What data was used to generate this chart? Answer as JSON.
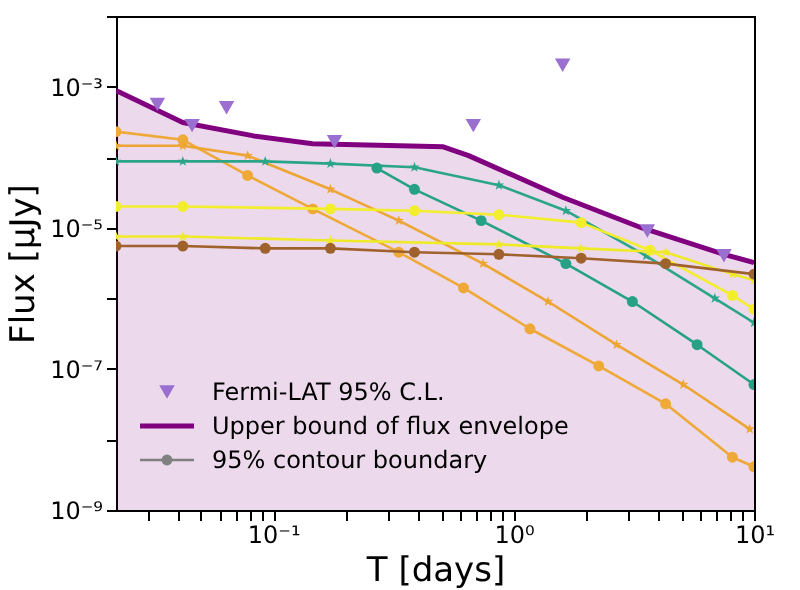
{
  "chart_data": {
    "type": "line",
    "xlabel": "T [days]",
    "ylabel": "Flux [μJy]",
    "log": "xy",
    "legend": "bottom left",
    "grid": false,
    "xlim": [
      0.0222,
      10
    ],
    "ylim": [
      1e-09,
      0.01
    ],
    "xticks": [
      {
        "value": 0.03,
        "label": null
      },
      {
        "value": 0.04,
        "label": null
      },
      {
        "value": 0.05,
        "label": null
      },
      {
        "value": 0.06,
        "label": null
      },
      {
        "value": 0.07,
        "label": null
      },
      {
        "value": 0.08,
        "label": null
      },
      {
        "value": 0.09,
        "label": null
      },
      {
        "value": 0.1,
        "label": "10⁻¹"
      },
      {
        "value": 0.2,
        "label": null
      },
      {
        "value": 0.3,
        "label": null
      },
      {
        "value": 0.4,
        "label": null
      },
      {
        "value": 0.5,
        "label": null
      },
      {
        "value": 0.6,
        "label": null
      },
      {
        "value": 0.7,
        "label": null
      },
      {
        "value": 0.8,
        "label": null
      },
      {
        "value": 0.9,
        "label": null
      },
      {
        "value": 1,
        "label": "10⁰"
      },
      {
        "value": 2,
        "label": null
      },
      {
        "value": 3,
        "label": null
      },
      {
        "value": 4,
        "label": null
      },
      {
        "value": 5,
        "label": null
      },
      {
        "value": 6,
        "label": null
      },
      {
        "value": 7,
        "label": null
      },
      {
        "value": 8,
        "label": null
      },
      {
        "value": 9,
        "label": null
      },
      {
        "value": 10,
        "label": "10¹"
      }
    ],
    "yticks": [
      {
        "value": 1e-09,
        "label": "10⁻⁹"
      },
      {
        "value": 1e-08,
        "label": null
      },
      {
        "value": 1e-07,
        "label": "10⁻⁷"
      },
      {
        "value": 1e-06,
        "label": null
      },
      {
        "value": 1e-05,
        "label": "10⁻⁵"
      },
      {
        "value": 0.0001,
        "label": null
      },
      {
        "value": 0.001,
        "label": "10⁻³"
      },
      {
        "value": 0.01,
        "label": null
      }
    ],
    "series": [
      {
        "type": "scatter",
        "name": "Fermi-LAT 95% C.L.",
        "color": "#9b6fd0",
        "marker": "triangle",
        "x": [
          0.033,
          0.046,
          0.064,
          0.18,
          0.68,
          1.6,
          3.6,
          7.5
        ],
        "values": [
          0.00056,
          0.00028,
          0.0005,
          0.000165,
          0.00028,
          0.002,
          9e-06,
          4e-06
        ]
      },
      {
        "type": "area",
        "name": "Upper bound of flux envelope",
        "color": "#800080",
        "marker": "none",
        "x": [
          0.0222,
          0.0421,
          0.083,
          0.146,
          0.51,
          0.65,
          1.6,
          3.4,
          7.5,
          10
        ],
        "values": [
          0.00088,
          0.00031,
          0.0002,
          0.000155,
          0.00014,
          0.000105,
          2.7e-05,
          1e-05,
          4.2e-06,
          3.2e-06
        ]
      },
      {
        "name": "95% contour boundary",
        "color": "#808080",
        "marker": "circle"
      },
      {
        "color": "#efa938",
        "marker": "circle",
        "x": [
          0.0222,
          0.0421,
          0.0783,
          0.146,
          0.333,
          0.619,
          1.17,
          2.26,
          4.29,
          8.13,
          10
        ],
        "values": [
          0.00023,
          0.000176,
          5.5e-05,
          1.85e-05,
          4.5e-06,
          1.4e-06,
          3.7e-07,
          1.1e-07,
          3.2e-08,
          5.6e-09,
          4.1e-09
        ]
      },
      {
        "color": "#eda534",
        "marker": "star",
        "x": [
          0.0222,
          0.0421,
          0.0783,
          0.173,
          0.333,
          0.746,
          1.39,
          2.68,
          5.08,
          9.6
        ],
        "values": [
          0.000145,
          0.000145,
          0.000105,
          3.5e-05,
          1.26e-05,
          3.1e-06,
          9e-07,
          2.2e-07,
          6e-08,
          1.4e-08
        ]
      },
      {
        "color": "#2ba58a",
        "marker": "star",
        "x": [
          0.0222,
          0.0421,
          0.0927,
          0.173,
          0.387,
          0.869,
          1.65,
          3.56,
          6.87,
          10
        ],
        "values": [
          8.7e-05,
          8.7e-05,
          8.7e-05,
          8.1e-05,
          7.2e-05,
          4e-05,
          1.74e-05,
          4e-06,
          1e-06,
          4.5e-07
        ]
      },
      {
        "color": "#27a186",
        "marker": "circle",
        "x": [
          0.27,
          0.387,
          0.733,
          1.65,
          3.12,
          5.8,
          10
        ],
        "values": [
          7e-05,
          3.5e-05,
          1.26e-05,
          3.1e-06,
          9e-07,
          2.2e-07,
          6e-08
        ]
      },
      {
        "color": "#f3ee2c",
        "marker": "circle",
        "x": [
          0.0222,
          0.0421,
          0.173,
          0.387,
          0.869,
          1.91,
          3.69,
          8.13,
          10
        ],
        "values": [
          2e-05,
          2e-05,
          1.85e-05,
          1.74e-05,
          1.53e-05,
          1.18e-05,
          4.8e-06,
          1.1e-06,
          7e-07
        ]
      },
      {
        "color": "#efea28",
        "marker": "star",
        "x": [
          0.0222,
          0.0421,
          0.173,
          0.869,
          1.91,
          4.29,
          8.13,
          10
        ],
        "values": [
          7.5e-06,
          7.5e-06,
          6.6e-06,
          5.8e-06,
          5.1e-06,
          4.5e-06,
          2.2e-06,
          1.8e-06
        ]
      },
      {
        "color": "#a0622d",
        "marker": "circle",
        "x": [
          0.0222,
          0.0421,
          0.0927,
          0.173,
          0.387,
          0.869,
          1.91,
          4.29,
          10
        ],
        "values": [
          5.5e-06,
          5.5e-06,
          5.1e-06,
          5.1e-06,
          4.5e-06,
          4.2e-06,
          3.7e-06,
          3.1e-06,
          2.2e-06
        ]
      }
    ]
  }
}
